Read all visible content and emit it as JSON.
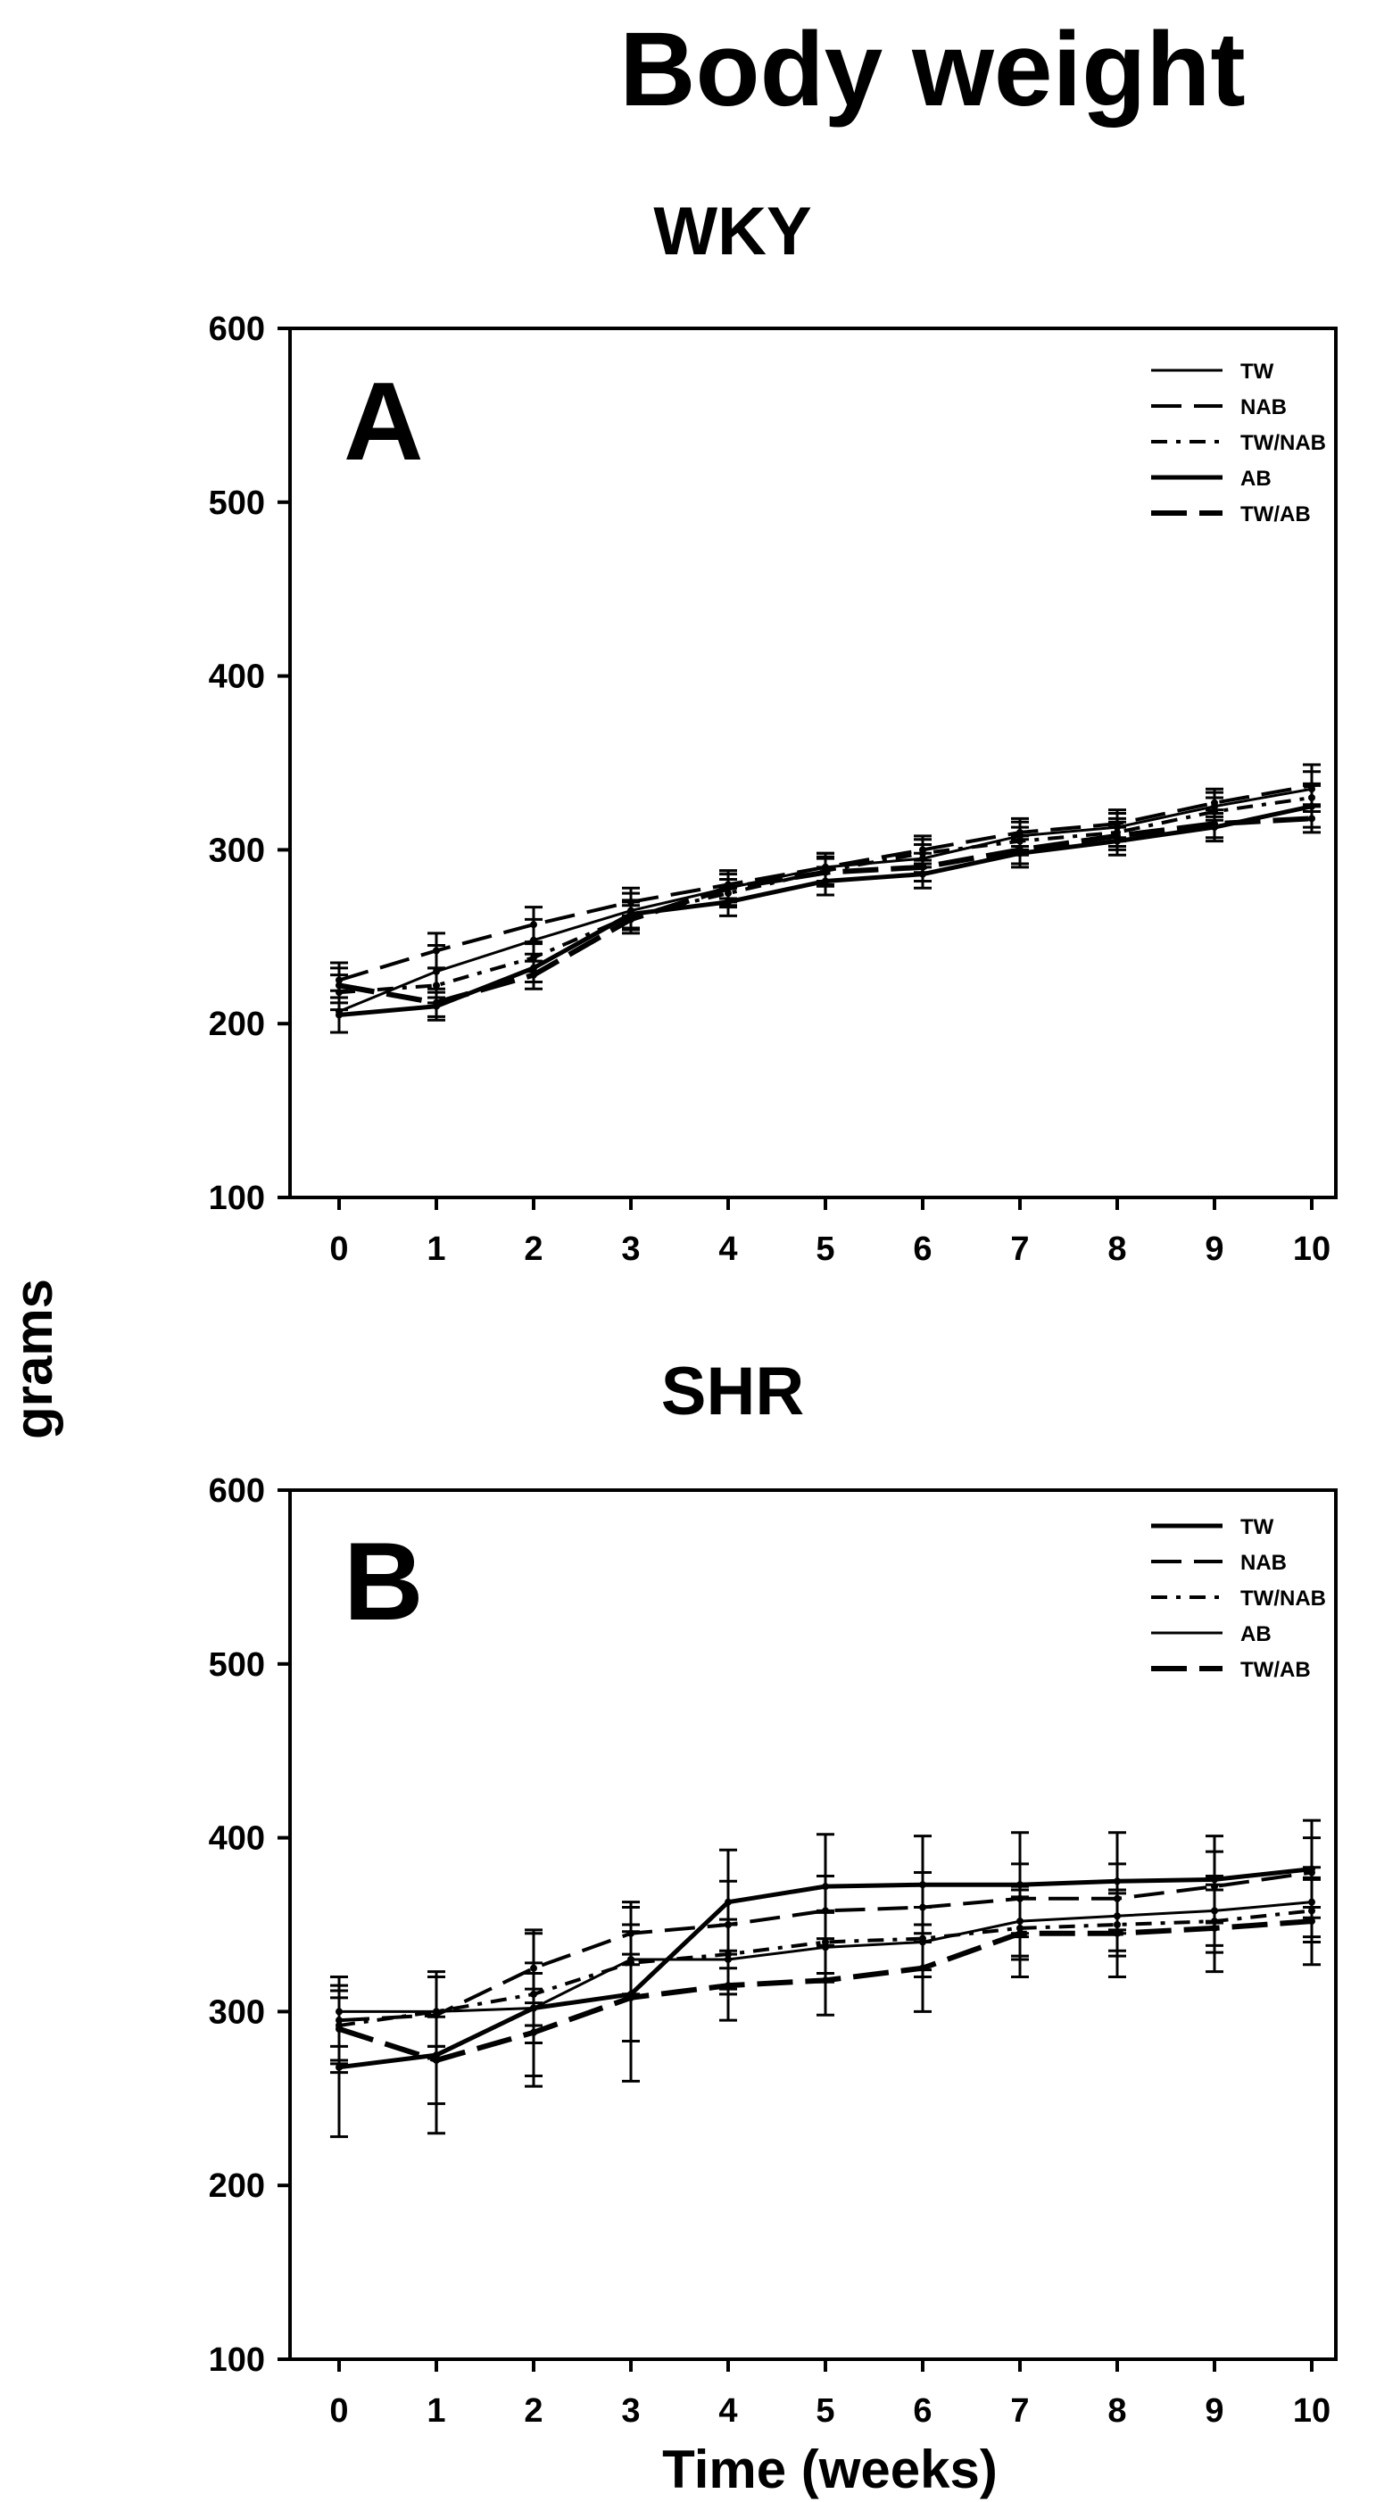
{
  "figure": {
    "title": "Body weight",
    "ylabel": "grams",
    "xlabel": "Time (weeks)",
    "colors": {
      "ink": "#000000",
      "background": "#ffffff"
    }
  },
  "chart_data": [
    {
      "type": "line",
      "panel": "A",
      "title": "WKY",
      "x": [
        0,
        1,
        2,
        3,
        4,
        5,
        6,
        7,
        8,
        9,
        10
      ],
      "xticks": [
        "0",
        "1",
        "2",
        "3",
        "4",
        "5",
        "6",
        "7",
        "8",
        "9",
        "10"
      ],
      "ylim": [
        100,
        600
      ],
      "yticks": [
        "100",
        "200",
        "300",
        "400",
        "500",
        "600"
      ],
      "legend_position": "top-right",
      "series": [
        {
          "name": "TW",
          "style": "solid-thin",
          "values": [
            207,
            230,
            248,
            265,
            278,
            290,
            295,
            308,
            313,
            325,
            335
          ],
          "errors": [
            12,
            15,
            12,
            10,
            10,
            8,
            8,
            8,
            8,
            8,
            10
          ]
        },
        {
          "name": "NAB",
          "style": "long-dash",
          "values": [
            225,
            242,
            257,
            270,
            280,
            290,
            300,
            310,
            315,
            327,
            337
          ],
          "errors": [
            10,
            10,
            10,
            8,
            8,
            8,
            8,
            8,
            8,
            8,
            12
          ]
        },
        {
          "name": "TW/NAB",
          "style": "dash-dot",
          "values": [
            218,
            222,
            238,
            262,
            275,
            288,
            298,
            305,
            310,
            322,
            330
          ],
          "errors": [
            10,
            10,
            8,
            8,
            8,
            8,
            8,
            8,
            8,
            8,
            8
          ]
        },
        {
          "name": "AB",
          "style": "solid-thick",
          "values": [
            205,
            210,
            232,
            263,
            270,
            282,
            286,
            298,
            305,
            313,
            325
          ],
          "errors": [
            10,
            8,
            8,
            8,
            8,
            8,
            8,
            8,
            8,
            8,
            12
          ]
        },
        {
          "name": "TW/AB",
          "style": "long-dash-thick",
          "values": [
            222,
            212,
            228,
            260,
            278,
            287,
            290,
            300,
            308,
            315,
            318
          ],
          "errors": [
            10,
            8,
            8,
            8,
            8,
            8,
            8,
            8,
            8,
            8,
            8
          ]
        }
      ]
    },
    {
      "type": "line",
      "panel": "B",
      "title": "SHR",
      "x": [
        0,
        1,
        2,
        3,
        4,
        5,
        6,
        7,
        8,
        9,
        10
      ],
      "xticks": [
        "0",
        "1",
        "2",
        "3",
        "4",
        "5",
        "6",
        "7",
        "8",
        "9",
        "10"
      ],
      "ylim": [
        100,
        600
      ],
      "yticks": [
        "100",
        "200",
        "300",
        "400",
        "500",
        "600"
      ],
      "legend_position": "top-right",
      "series": [
        {
          "name": "TW",
          "style": "solid-thick",
          "values": [
            268,
            275,
            302,
            310,
            363,
            372,
            373,
            373,
            375,
            376,
            382
          ],
          "errors": [
            40,
            45,
            45,
            50,
            30,
            30,
            28,
            30,
            28,
            25,
            28
          ]
        },
        {
          "name": "NAB",
          "style": "long-dash",
          "values": [
            295,
            298,
            325,
            345,
            350,
            358,
            360,
            365,
            365,
            372,
            380
          ],
          "errors": [
            25,
            25,
            20,
            18,
            25,
            20,
            20,
            20,
            20,
            20,
            20
          ]
        },
        {
          "name": "TW/NAB",
          "style": "dash-dot",
          "values": [
            292,
            300,
            310,
            328,
            333,
            340,
            342,
            348,
            350,
            352,
            358
          ],
          "errors": [
            20,
            20,
            18,
            18,
            20,
            18,
            18,
            18,
            18,
            18,
            18
          ]
        },
        {
          "name": "AB",
          "style": "solid-thin",
          "values": [
            300,
            300,
            302,
            330,
            330,
            337,
            340,
            352,
            355,
            358,
            363
          ],
          "errors": [
            20,
            20,
            20,
            20,
            20,
            20,
            20,
            20,
            20,
            20,
            20
          ]
        },
        {
          "name": "TW/AB",
          "style": "long-dash-thick",
          "values": [
            290,
            272,
            288,
            308,
            315,
            318,
            325,
            345,
            345,
            348,
            352
          ],
          "errors": [
            25,
            25,
            25,
            25,
            20,
            20,
            25,
            25,
            25,
            25,
            25
          ]
        }
      ]
    }
  ]
}
